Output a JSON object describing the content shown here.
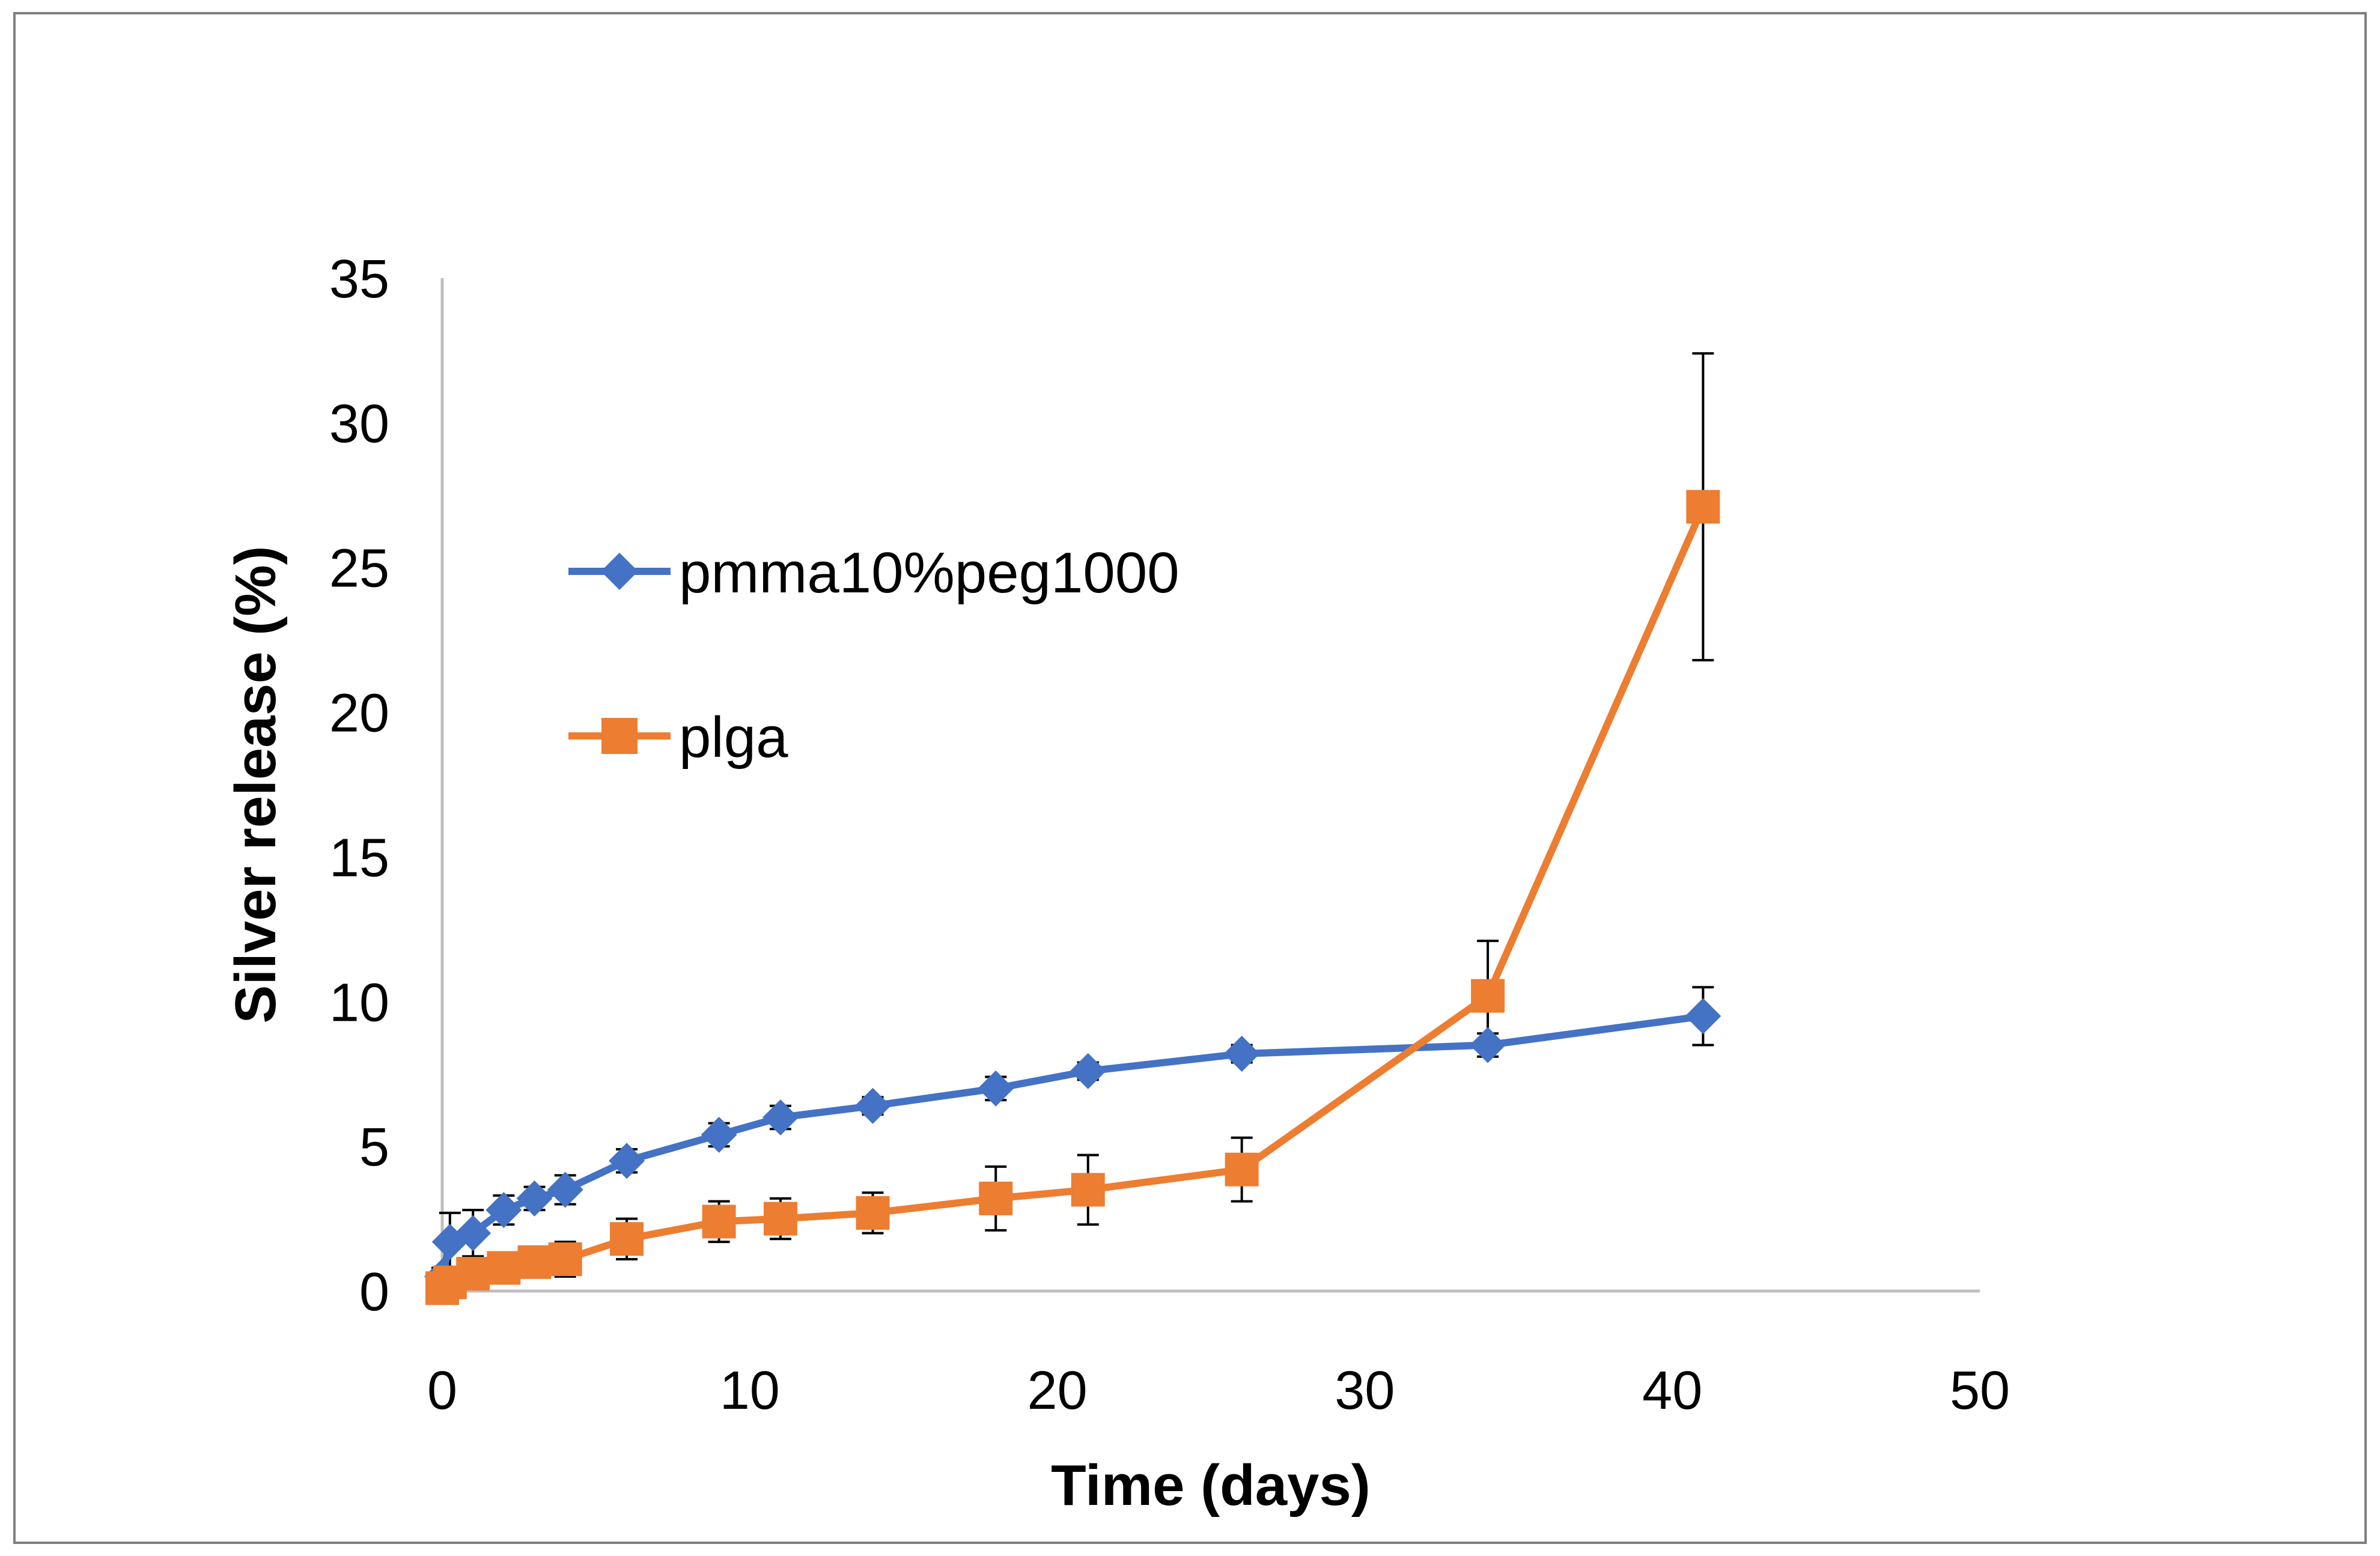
{
  "chart_data": {
    "type": "line",
    "title": "",
    "xlabel": "Time (days)",
    "ylabel": "Silver release (%)",
    "xlim": [
      0,
      50
    ],
    "ylim": [
      0,
      35
    ],
    "xticks": [
      0,
      10,
      20,
      30,
      40,
      50
    ],
    "yticks": [
      0,
      5,
      10,
      15,
      20,
      25,
      30,
      35
    ],
    "grid": false,
    "legend_position": "upper-left inside plot",
    "series": [
      {
        "name": "pmma10%peg1000",
        "color": "#4472C4",
        "marker": "diamond",
        "x": [
          0,
          0.25,
          1,
          2,
          3,
          4,
          6,
          9,
          11,
          14,
          18,
          21,
          26,
          34,
          41
        ],
        "y": [
          0.5,
          1.7,
          2.0,
          2.8,
          3.2,
          3.5,
          4.5,
          5.4,
          6.0,
          6.4,
          7.0,
          7.6,
          8.2,
          8.5,
          9.5
        ],
        "error": [
          0.3,
          1.0,
          0.8,
          0.5,
          0.4,
          0.5,
          0.4,
          0.4,
          0.4,
          0.3,
          0.4,
          0.3,
          0.3,
          0.4,
          1.0
        ]
      },
      {
        "name": "plga",
        "color": "#ED7D31",
        "marker": "square",
        "x": [
          0,
          0.25,
          1,
          2,
          3,
          4,
          6,
          9,
          11,
          14,
          18,
          21,
          26,
          34,
          41
        ],
        "y": [
          0.1,
          0.3,
          0.6,
          0.8,
          1.0,
          1.1,
          1.8,
          2.4,
          2.5,
          2.7,
          3.2,
          3.5,
          4.2,
          10.2,
          27.1
        ],
        "error": [
          0.2,
          0.3,
          0.4,
          0.4,
          0.5,
          0.6,
          0.7,
          0.7,
          0.7,
          0.7,
          1.1,
          1.2,
          1.1,
          1.9,
          5.3
        ]
      }
    ]
  }
}
